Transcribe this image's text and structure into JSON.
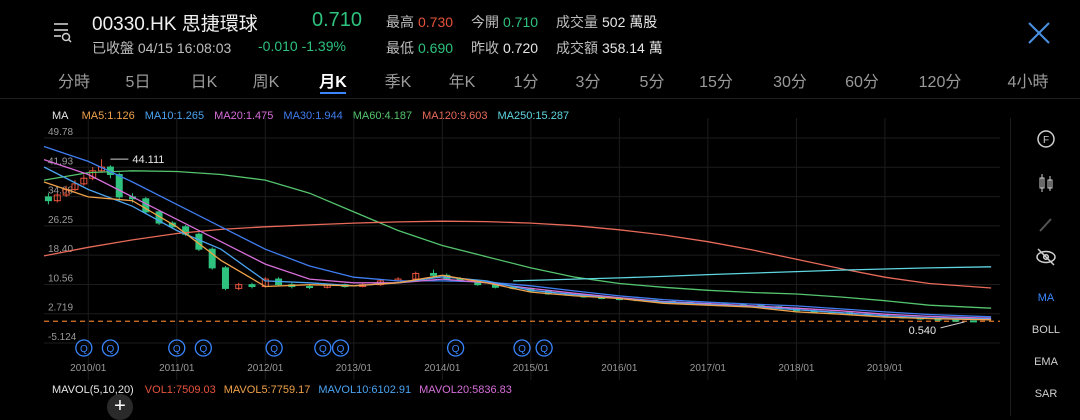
{
  "header": {
    "ticker": "00330.HK 思捷環球",
    "price": "0.710",
    "status": "已收盤 04/15 16:08:03",
    "change": "-0.010 -1.39%",
    "stats": {
      "high_label": "最高",
      "high": "0.730",
      "open_label": "今開",
      "open": "0.710",
      "volume_label": "成交量",
      "volume": "502 萬股",
      "low_label": "最低",
      "low": "0.690",
      "prev_close_label": "昨收",
      "prev_close": "0.720",
      "turnover_label": "成交額",
      "turnover": "358.14 萬"
    }
  },
  "tabs": [
    "分時",
    "5日",
    "日K",
    "周K",
    "月K",
    "季K",
    "年K",
    "1分",
    "3分",
    "5分",
    "15分",
    "30分",
    "60分",
    "120分",
    "4小時"
  ],
  "active_tab": "月K",
  "ma_legend": {
    "title": "MA",
    "items": [
      {
        "label": "MA5:1.126",
        "color": "#f0a24a"
      },
      {
        "label": "MA10:1.265",
        "color": "#4aa3f0"
      },
      {
        "label": "MA20:1.475",
        "color": "#d66ed8"
      },
      {
        "label": "MA30:1.944",
        "color": "#3f7df0"
      },
      {
        "label": "MA60:4.187",
        "color": "#54c46e"
      },
      {
        "label": "MA120:9.603",
        "color": "#e86a5a"
      },
      {
        "label": "MA250:15.287",
        "color": "#5fd6e0"
      }
    ]
  },
  "sidebar": {
    "items": [
      "MA",
      "BOLL",
      "EMA",
      "SAR"
    ],
    "active": "MA"
  },
  "mavol": {
    "title": "MAVOL(5,10,20)",
    "items": [
      {
        "label": "VOL1:7509.03",
        "color": "#e5533c"
      },
      {
        "label": "MAVOL5:7759.17",
        "color": "#f0a24a"
      },
      {
        "label": "MAVOL10:6102.91",
        "color": "#4aa3f0"
      },
      {
        "label": "MAVOL20:5836.83",
        "color": "#d66ed8"
      }
    ]
  },
  "colors": {
    "up": "#e5533c",
    "down": "#2ec27e",
    "accent": "#3a86ff",
    "reference_line": "#e0772a"
  },
  "chart_data": {
    "type": "line",
    "y_tick_labels": [
      "49.78",
      "41.93",
      "34.08",
      "26.25",
      "18.40",
      "10.56",
      "2.719",
      "-5.124"
    ],
    "y_ticks": [
      49.78,
      41.93,
      34.08,
      26.25,
      18.4,
      10.56,
      2.719,
      -5.124
    ],
    "ylim": [
      -5.124,
      49.78
    ],
    "x_tick_labels": [
      "2010/01",
      "2011/01",
      "2012/01",
      "2013/01",
      "2014/01",
      "2015/01",
      "2016/01",
      "2017/01",
      "2018/01",
      "2019/01"
    ],
    "x_years": [
      2010,
      2011,
      2012,
      2013,
      2014,
      2015,
      2016,
      2017,
      2018,
      2019
    ],
    "xlim": [
      2009.5,
      2020.3
    ],
    "grid": true,
    "annotations": [
      {
        "text": "44.111",
        "x": 2010.25,
        "y": 44.111
      },
      {
        "text": "0.540",
        "x": 2019.9,
        "y": 0.54
      }
    ],
    "reference_line": 0.71,
    "event_markers": {
      "symbol": "Q",
      "x": [
        2009.95,
        2010.25,
        2011.0,
        2011.3,
        2012.1,
        2012.65,
        2012.85,
        2014.15,
        2014.9,
        2015.15
      ]
    },
    "series": [
      {
        "name": "MA60",
        "color": "#54c46e",
        "x": [
          2009.5,
          2010.0,
          2010.5,
          2011.0,
          2011.5,
          2012.0,
          2012.5,
          2013.0,
          2013.5,
          2014.0,
          2014.5,
          2015.0,
          2015.5,
          2016.0,
          2016.5,
          2017.0,
          2017.5,
          2018.0,
          2018.5,
          2019.0,
          2019.5,
          2020.2
        ],
        "values": [
          38.5,
          40.5,
          41.0,
          40.8,
          40.0,
          38.5,
          35.0,
          30.0,
          25.0,
          21.0,
          18.0,
          15.0,
          12.5,
          10.8,
          9.8,
          9.0,
          8.4,
          8.0,
          7.2,
          6.2,
          5.0,
          4.2
        ]
      },
      {
        "name": "MA120",
        "color": "#e86a5a",
        "x": [
          2009.5,
          2010.0,
          2010.5,
          2011.0,
          2011.5,
          2012.0,
          2012.5,
          2013.0,
          2013.5,
          2014.0,
          2014.5,
          2015.0,
          2015.5,
          2016.0,
          2016.5,
          2017.0,
          2017.5,
          2018.0,
          2018.5,
          2019.0,
          2019.5,
          2020.2
        ],
        "values": [
          18.2,
          20.5,
          22.5,
          24.2,
          25.3,
          26.0,
          26.5,
          27.0,
          27.3,
          27.5,
          27.4,
          27.0,
          26.3,
          25.2,
          23.8,
          22.0,
          19.8,
          17.3,
          14.8,
          12.5,
          10.8,
          9.6
        ]
      },
      {
        "name": "MA250",
        "color": "#5fd6e0",
        "x": [
          2014.8,
          2015.5,
          2016.0,
          2016.5,
          2017.0,
          2017.5,
          2018.0,
          2018.5,
          2019.0,
          2019.5,
          2020.2
        ],
        "values": [
          11.5,
          12.0,
          12.3,
          12.7,
          13.2,
          13.6,
          14.0,
          14.4,
          14.7,
          15.0,
          15.29
        ]
      },
      {
        "name": "MA30",
        "color": "#3f7df0",
        "x": [
          2009.5,
          2010.0,
          2010.5,
          2011.0,
          2011.5,
          2012.0,
          2012.5,
          2013.0,
          2013.5,
          2014.0,
          2014.5,
          2015.0,
          2015.5,
          2016.0,
          2016.5,
          2017.0,
          2017.5,
          2018.0,
          2018.5,
          2019.0,
          2019.5,
          2020.2
        ],
        "values": [
          47.5,
          43.5,
          38.0,
          32.0,
          26.0,
          20.0,
          15.5,
          12.5,
          11.5,
          11.5,
          11.2,
          10.2,
          8.8,
          7.5,
          6.5,
          5.8,
          5.3,
          4.8,
          4.0,
          3.2,
          2.5,
          1.9
        ]
      },
      {
        "name": "MA20",
        "color": "#d66ed8",
        "x": [
          2009.5,
          2010.0,
          2010.5,
          2011.0,
          2011.5,
          2012.0,
          2012.5,
          2013.0,
          2013.5,
          2014.0,
          2014.5,
          2015.0,
          2015.5,
          2016.0,
          2016.5,
          2017.0,
          2017.5,
          2018.0,
          2018.5,
          2019.0,
          2019.5,
          2020.2
        ],
        "values": [
          44.0,
          40.0,
          34.0,
          28.0,
          22.0,
          16.0,
          12.0,
          11.0,
          11.0,
          12.0,
          11.0,
          9.5,
          8.2,
          7.0,
          6.0,
          5.4,
          4.8,
          4.2,
          3.5,
          2.6,
          2.0,
          1.5
        ]
      },
      {
        "name": "MA10",
        "color": "#4aa3f0",
        "x": [
          2009.5,
          2010.0,
          2010.5,
          2011.0,
          2011.5,
          2012.0,
          2012.5,
          2013.0,
          2013.5,
          2014.0,
          2014.5,
          2015.0,
          2015.5,
          2016.0,
          2016.5,
          2017.0,
          2017.5,
          2018.0,
          2018.5,
          2019.0,
          2019.5,
          2020.2
        ],
        "values": [
          42.0,
          36.0,
          31.5,
          25.0,
          20.0,
          11.5,
          11.0,
          10.2,
          11.0,
          12.6,
          11.5,
          9.0,
          7.8,
          6.8,
          5.8,
          5.2,
          4.6,
          3.8,
          3.0,
          2.2,
          1.6,
          1.3
        ]
      },
      {
        "name": "MA5",
        "color": "#f0a24a",
        "x": [
          2009.5,
          2010.0,
          2010.5,
          2011.0,
          2011.5,
          2012.0,
          2012.5,
          2013.0,
          2013.5,
          2014.0,
          2014.5,
          2015.0,
          2015.5,
          2016.0,
          2016.5,
          2017.0,
          2017.5,
          2018.0,
          2018.5,
          2019.0,
          2019.5,
          2020.2
        ],
        "values": [
          38.0,
          34.0,
          33.0,
          26.0,
          17.0,
          10.0,
          10.5,
          10.2,
          11.0,
          13.0,
          11.0,
          8.5,
          7.5,
          6.8,
          5.5,
          5.0,
          4.5,
          3.2,
          2.6,
          1.8,
          1.4,
          1.1
        ]
      }
    ],
    "candles": {
      "x": [
        2009.55,
        2009.65,
        2009.75,
        2009.85,
        2009.95,
        2010.05,
        2010.15,
        2010.25,
        2010.35,
        2010.5,
        2010.65,
        2010.8,
        2010.95,
        2011.1,
        2011.25,
        2011.4,
        2011.55,
        2011.7,
        2011.85,
        2012.0,
        2012.15,
        2012.3,
        2012.5,
        2012.7,
        2012.9,
        2013.1,
        2013.3,
        2013.5,
        2013.7,
        2013.9,
        2014.05,
        2014.2,
        2014.4,
        2014.6,
        2014.8,
        2015.0,
        2015.2,
        2015.4,
        2015.6,
        2015.8,
        2016.0,
        2016.2,
        2016.4,
        2016.6,
        2016.8,
        2017.0,
        2017.2,
        2017.4,
        2017.6,
        2017.8,
        2018.0,
        2018.2,
        2018.4,
        2018.6,
        2018.8,
        2019.0,
        2019.2,
        2019.4,
        2019.6,
        2019.8,
        2020.0
      ],
      "open": [
        34.0,
        33.0,
        34.5,
        36.0,
        37.5,
        39.0,
        41.0,
        42.0,
        40.0,
        34.0,
        33.5,
        30.0,
        27.0,
        26.0,
        24.0,
        20.0,
        15.0,
        9.5,
        10.5,
        10.0,
        12.0,
        10.5,
        10.0,
        9.8,
        10.5,
        10.0,
        10.5,
        11.5,
        12.0,
        13.5,
        13.0,
        12.0,
        11.5,
        10.5,
        9.8,
        9.5,
        8.8,
        8.0,
        7.8,
        7.2,
        6.8,
        6.5,
        6.3,
        6.0,
        5.8,
        5.5,
        5.3,
        5.2,
        5.0,
        4.6,
        4.2,
        3.5,
        3.2,
        3.0,
        2.6,
        2.2,
        1.9,
        1.6,
        1.3,
        1.0,
        0.8
      ],
      "close": [
        33.0,
        34.5,
        36.0,
        37.5,
        39.0,
        41.0,
        42.0,
        40.0,
        34.0,
        33.5,
        30.0,
        27.0,
        26.0,
        24.0,
        20.0,
        15.0,
        9.5,
        10.5,
        10.0,
        12.0,
        10.5,
        10.0,
        9.8,
        10.5,
        10.0,
        10.5,
        11.5,
        12.0,
        13.5,
        13.0,
        12.0,
        11.5,
        10.5,
        9.8,
        9.5,
        8.8,
        8.0,
        7.8,
        7.2,
        6.8,
        6.5,
        6.3,
        6.0,
        5.8,
        5.5,
        5.3,
        5.2,
        5.0,
        4.6,
        4.2,
        3.5,
        3.2,
        3.0,
        2.6,
        2.2,
        1.9,
        1.6,
        1.3,
        1.0,
        0.8,
        0.71
      ],
      "high": [
        35.0,
        35.0,
        37.0,
        38.5,
        40.0,
        42.0,
        44.111,
        42.5,
        40.5,
        35.0,
        34.0,
        30.5,
        27.5,
        26.5,
        24.5,
        20.5,
        15.5,
        11.0,
        11.0,
        12.5,
        12.5,
        11.0,
        10.5,
        10.8,
        10.8,
        10.8,
        11.8,
        12.5,
        14.0,
        14.5,
        13.5,
        12.5,
        11.8,
        10.8,
        10.0,
        9.7,
        9.0,
        8.3,
        8.0,
        7.5,
        7.0,
        6.7,
        6.5,
        6.2,
        6.0,
        5.7,
        5.5,
        5.4,
        5.2,
        4.8,
        4.4,
        3.7,
        3.4,
        3.2,
        2.8,
        2.4,
        2.0,
        1.7,
        1.4,
        1.1,
        0.9
      ],
      "low": [
        32.0,
        32.5,
        34.0,
        35.5,
        37.0,
        38.5,
        40.5,
        39.0,
        33.0,
        32.5,
        29.5,
        26.5,
        25.5,
        23.5,
        19.5,
        14.5,
        9.0,
        9.0,
        9.5,
        9.7,
        10.0,
        9.5,
        9.3,
        9.5,
        9.7,
        9.8,
        10.2,
        11.2,
        11.8,
        12.5,
        11.8,
        11.2,
        10.2,
        9.5,
        9.2,
        8.5,
        7.8,
        7.5,
        7.0,
        6.6,
        6.3,
        6.1,
        5.8,
        5.6,
        5.3,
        5.1,
        5.0,
        4.8,
        4.4,
        4.0,
        3.3,
        3.0,
        2.8,
        2.4,
        2.0,
        1.7,
        1.4,
        1.1,
        0.8,
        0.6,
        0.54
      ]
    },
    "volume": {
      "x": [
        2011.5,
        2011.6
      ],
      "values": [
        1,
        1
      ]
    }
  }
}
